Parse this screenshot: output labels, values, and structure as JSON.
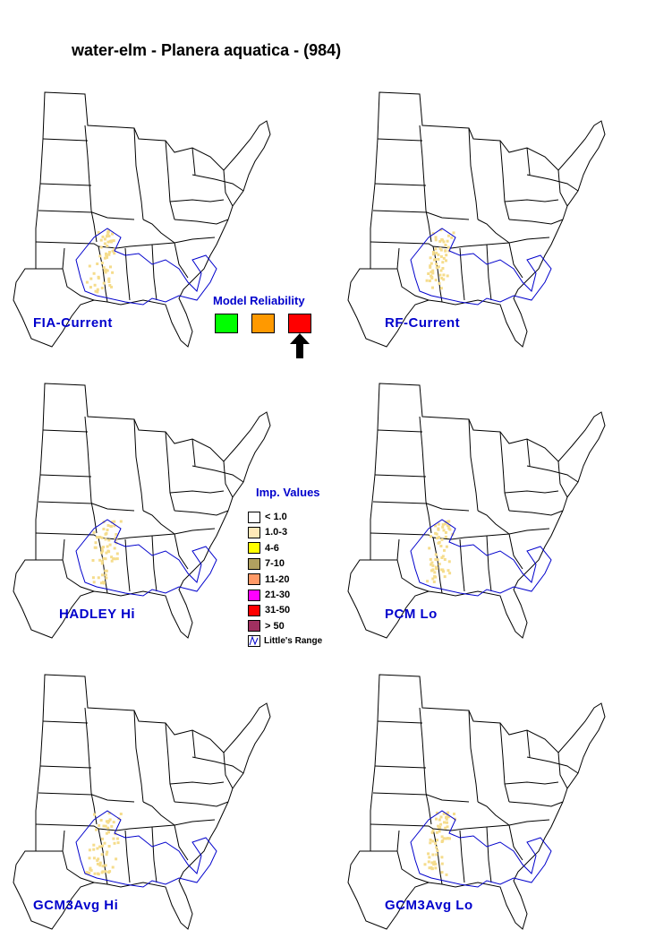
{
  "title": "water-elm - Planera aquatica - (984)",
  "maps": [
    {
      "label": "FIA-Current"
    },
    {
      "label": "RF-Current"
    },
    {
      "label": "HADLEY Hi"
    },
    {
      "label": "PCM Lo"
    },
    {
      "label": "GCM3Avg Hi"
    },
    {
      "label": "GCM3Avg Lo"
    }
  ],
  "reliability": {
    "title": "Model Reliability",
    "colors": [
      "#00ff00",
      "#ff9900",
      "#ff0000"
    ],
    "selected_index": 2
  },
  "legend": {
    "title": "Imp. Values",
    "items": [
      {
        "label": "< 1.0",
        "color": "#ffffff"
      },
      {
        "label": "1.0-3",
        "color": "#ffe8b8"
      },
      {
        "label": "4-6",
        "color": "#ffff00"
      },
      {
        "label": "7-10",
        "color": "#b0a060"
      },
      {
        "label": "11-20",
        "color": "#ff9966"
      },
      {
        "label": "21-30",
        "color": "#ff00ff"
      },
      {
        "label": "31-50",
        "color": "#ff0000"
      },
      {
        "label": "> 50",
        "color": "#a03060"
      }
    ],
    "range_label": "Little's Range",
    "range_color": "#0000cc"
  },
  "colors": {
    "label_blue": "#0000cc",
    "state_border": "#000000",
    "habitat_fill": "#f5dc8c"
  }
}
